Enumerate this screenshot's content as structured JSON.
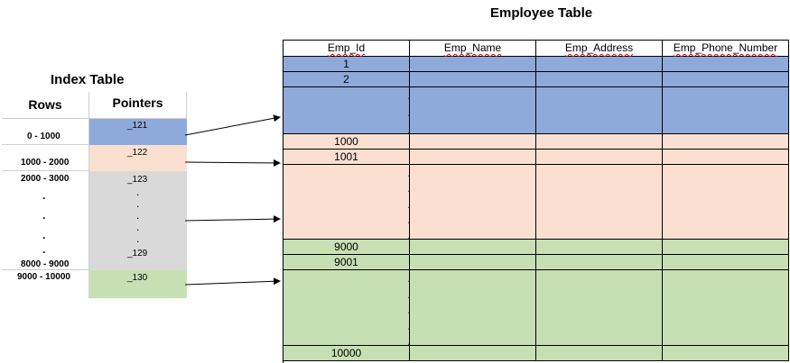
{
  "employee_table": {
    "title": "Employee Table",
    "headers": [
      "Emp_Id",
      "Emp_Name",
      "Emp_Address",
      "Emp_Phone_Number"
    ],
    "rows": [
      {
        "id": "1",
        "color": "#8eaadb"
      },
      {
        "id": "2",
        "color": "#8eaadb"
      },
      {
        "id": "",
        "dots": 3,
        "color": "#8eaadb"
      },
      {
        "id": "1000",
        "color": "#fbe0d1"
      },
      {
        "id": "1001",
        "color": "#fbe0d1"
      },
      {
        "id": "",
        "dots": 5,
        "color": "#fbe0d1"
      },
      {
        "id": "9000",
        "color": "#c6e0b4"
      },
      {
        "id": "9001",
        "color": "#c6e0b4"
      },
      {
        "id": "",
        "dots": 5,
        "color": "#c6e0b4"
      },
      {
        "id": "10000",
        "color": "#c6e0b4"
      }
    ]
  },
  "index_table": {
    "title": "Index Table",
    "headers": [
      "Rows",
      "Pointers"
    ],
    "rows": [
      {
        "range": "0 - 1000",
        "pointer": "_121",
        "color": "#8eaadb"
      },
      {
        "range": "1000 - 2000",
        "pointer": "_122",
        "color": "#fbe0d1"
      },
      {
        "range_start": "2000 - 3000",
        "range_end": "8000 - 9000",
        "pointer_start": "_123",
        "pointer_end": "_129",
        "color": "#d9d9d9"
      },
      {
        "range": "9000 - 10000",
        "pointer": "_130",
        "color": "#c6e0b4"
      }
    ],
    "dot": "."
  }
}
